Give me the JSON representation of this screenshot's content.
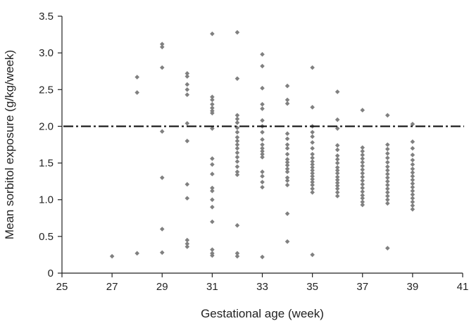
{
  "chart_data": {
    "type": "scatter",
    "title": "",
    "xlabel": "Gestational age (week)",
    "ylabel": "Mean sorbitol exposure (g/kg/week)",
    "xlim": [
      25,
      41
    ],
    "ylim": [
      0,
      3.5
    ],
    "x_ticks": [
      25,
      27,
      29,
      31,
      33,
      35,
      37,
      39,
      41
    ],
    "y_ticks": [
      0,
      0.5,
      1.0,
      1.5,
      2.0,
      2.5,
      3.0,
      3.5
    ],
    "x_tick_labels": [
      "25",
      "27",
      "29",
      "31",
      "33",
      "35",
      "37",
      "39",
      "41"
    ],
    "y_tick_labels": [
      "0",
      "0.5",
      "1.0",
      "1.5",
      "2.0",
      "2.5",
      "3.0",
      "3.5"
    ],
    "grid": false,
    "marker": "diamond",
    "marker_color": "#808080",
    "reference_line": {
      "y": 2.0,
      "style": "dash-dot",
      "color": "#111111"
    },
    "series": [
      {
        "points": [
          [
            27,
            0.23
          ],
          [
            28,
            2.67
          ],
          [
            28,
            2.46
          ],
          [
            28,
            0.27
          ],
          [
            29,
            3.12
          ],
          [
            29,
            3.08
          ],
          [
            29,
            2.8
          ],
          [
            29,
            1.93
          ],
          [
            29,
            1.3
          ],
          [
            29,
            0.6
          ],
          [
            29,
            0.28
          ],
          [
            30,
            2.72
          ],
          [
            30,
            2.68
          ],
          [
            30,
            2.57
          ],
          [
            30,
            2.5
          ],
          [
            30,
            2.43
          ],
          [
            30,
            2.04
          ],
          [
            30,
            1.8
          ],
          [
            30,
            1.21
          ],
          [
            30,
            1.02
          ],
          [
            30,
            0.45
          ],
          [
            30,
            0.4
          ],
          [
            30,
            0.36
          ],
          [
            31,
            3.26
          ],
          [
            31,
            2.4
          ],
          [
            31,
            2.36
          ],
          [
            31,
            2.3
          ],
          [
            31,
            2.25
          ],
          [
            31,
            2.21
          ],
          [
            31,
            2.18
          ],
          [
            31,
            1.97
          ],
          [
            31,
            1.56
          ],
          [
            31,
            1.48
          ],
          [
            31,
            1.35
          ],
          [
            31,
            1.16
          ],
          [
            31,
            1.12
          ],
          [
            31,
            1.0
          ],
          [
            31,
            0.9
          ],
          [
            31,
            0.7
          ],
          [
            31,
            0.32
          ],
          [
            31,
            0.27
          ],
          [
            31,
            0.24
          ],
          [
            32,
            3.28
          ],
          [
            32,
            2.65
          ],
          [
            32,
            2.15
          ],
          [
            32,
            2.1
          ],
          [
            32,
            2.05
          ],
          [
            32,
            1.98
          ],
          [
            32,
            1.92
          ],
          [
            32,
            1.85
          ],
          [
            32,
            1.8
          ],
          [
            32,
            1.75
          ],
          [
            32,
            1.7
          ],
          [
            32,
            1.64
          ],
          [
            32,
            1.58
          ],
          [
            32,
            1.52
          ],
          [
            32,
            1.45
          ],
          [
            32,
            1.38
          ],
          [
            32,
            1.34
          ],
          [
            32,
            0.65
          ],
          [
            32,
            0.27
          ],
          [
            32,
            0.23
          ],
          [
            33,
            2.98
          ],
          [
            33,
            2.82
          ],
          [
            33,
            2.52
          ],
          [
            33,
            2.3
          ],
          [
            33,
            2.24
          ],
          [
            33,
            2.08
          ],
          [
            33,
            2.0
          ],
          [
            33,
            1.92
          ],
          [
            33,
            1.82
          ],
          [
            33,
            1.75
          ],
          [
            33,
            1.7
          ],
          [
            33,
            1.66
          ],
          [
            33,
            1.62
          ],
          [
            33,
            1.58
          ],
          [
            33,
            1.38
          ],
          [
            33,
            1.32
          ],
          [
            33,
            1.24
          ],
          [
            33,
            1.17
          ],
          [
            33,
            0.22
          ],
          [
            34,
            2.55
          ],
          [
            34,
            2.36
          ],
          [
            34,
            2.31
          ],
          [
            34,
            1.9
          ],
          [
            34,
            1.83
          ],
          [
            34,
            1.75
          ],
          [
            34,
            1.7
          ],
          [
            34,
            1.62
          ],
          [
            34,
            1.55
          ],
          [
            34,
            1.51
          ],
          [
            34,
            1.47
          ],
          [
            34,
            1.42
          ],
          [
            34,
            1.38
          ],
          [
            34,
            1.3
          ],
          [
            34,
            1.26
          ],
          [
            34,
            1.2
          ],
          [
            34,
            0.81
          ],
          [
            34,
            0.43
          ],
          [
            35,
            2.8
          ],
          [
            35,
            2.26
          ],
          [
            35,
            2.0
          ],
          [
            35,
            1.92
          ],
          [
            35,
            1.86
          ],
          [
            35,
            1.78
          ],
          [
            35,
            1.7
          ],
          [
            35,
            1.62
          ],
          [
            35,
            1.57
          ],
          [
            35,
            1.52
          ],
          [
            35,
            1.48
          ],
          [
            35,
            1.44
          ],
          [
            35,
            1.4
          ],
          [
            35,
            1.36
          ],
          [
            35,
            1.32
          ],
          [
            35,
            1.28
          ],
          [
            35,
            1.24
          ],
          [
            35,
            1.2
          ],
          [
            35,
            1.15
          ],
          [
            35,
            1.1
          ],
          [
            35,
            0.25
          ],
          [
            36,
            2.47
          ],
          [
            36,
            2.09
          ],
          [
            36,
            1.97
          ],
          [
            36,
            1.74
          ],
          [
            36,
            1.68
          ],
          [
            36,
            1.6
          ],
          [
            36,
            1.55
          ],
          [
            36,
            1.5
          ],
          [
            36,
            1.44
          ],
          [
            36,
            1.4
          ],
          [
            36,
            1.36
          ],
          [
            36,
            1.31
          ],
          [
            36,
            1.27
          ],
          [
            36,
            1.23
          ],
          [
            36,
            1.19
          ],
          [
            36,
            1.15
          ],
          [
            36,
            1.1
          ],
          [
            36,
            1.05
          ],
          [
            37,
            2.22
          ],
          [
            37,
            1.71
          ],
          [
            37,
            1.66
          ],
          [
            37,
            1.61
          ],
          [
            37,
            1.56
          ],
          [
            37,
            1.51
          ],
          [
            37,
            1.46
          ],
          [
            37,
            1.41
          ],
          [
            37,
            1.36
          ],
          [
            37,
            1.31
          ],
          [
            37,
            1.26
          ],
          [
            37,
            1.21
          ],
          [
            37,
            1.16
          ],
          [
            37,
            1.11
          ],
          [
            37,
            1.06
          ],
          [
            37,
            1.02
          ],
          [
            37,
            0.97
          ],
          [
            37,
            0.93
          ],
          [
            38,
            2.15
          ],
          [
            38,
            1.75
          ],
          [
            38,
            1.69
          ],
          [
            38,
            1.63
          ],
          [
            38,
            1.57
          ],
          [
            38,
            1.51
          ],
          [
            38,
            1.45
          ],
          [
            38,
            1.4
          ],
          [
            38,
            1.35
          ],
          [
            38,
            1.3
          ],
          [
            38,
            1.25
          ],
          [
            38,
            1.2
          ],
          [
            38,
            1.15
          ],
          [
            38,
            1.1
          ],
          [
            38,
            1.05
          ],
          [
            38,
            1.0
          ],
          [
            38,
            0.95
          ],
          [
            38,
            0.34
          ],
          [
            39,
            2.03
          ],
          [
            39,
            1.79
          ],
          [
            39,
            1.7
          ],
          [
            39,
            1.61
          ],
          [
            39,
            1.54
          ],
          [
            39,
            1.48
          ],
          [
            39,
            1.42
          ],
          [
            39,
            1.37
          ],
          [
            39,
            1.32
          ],
          [
            39,
            1.27
          ],
          [
            39,
            1.22
          ],
          [
            39,
            1.17
          ],
          [
            39,
            1.12
          ],
          [
            39,
            1.07
          ],
          [
            39,
            1.02
          ],
          [
            39,
            0.97
          ],
          [
            39,
            0.92
          ],
          [
            39,
            0.87
          ]
        ]
      }
    ]
  }
}
